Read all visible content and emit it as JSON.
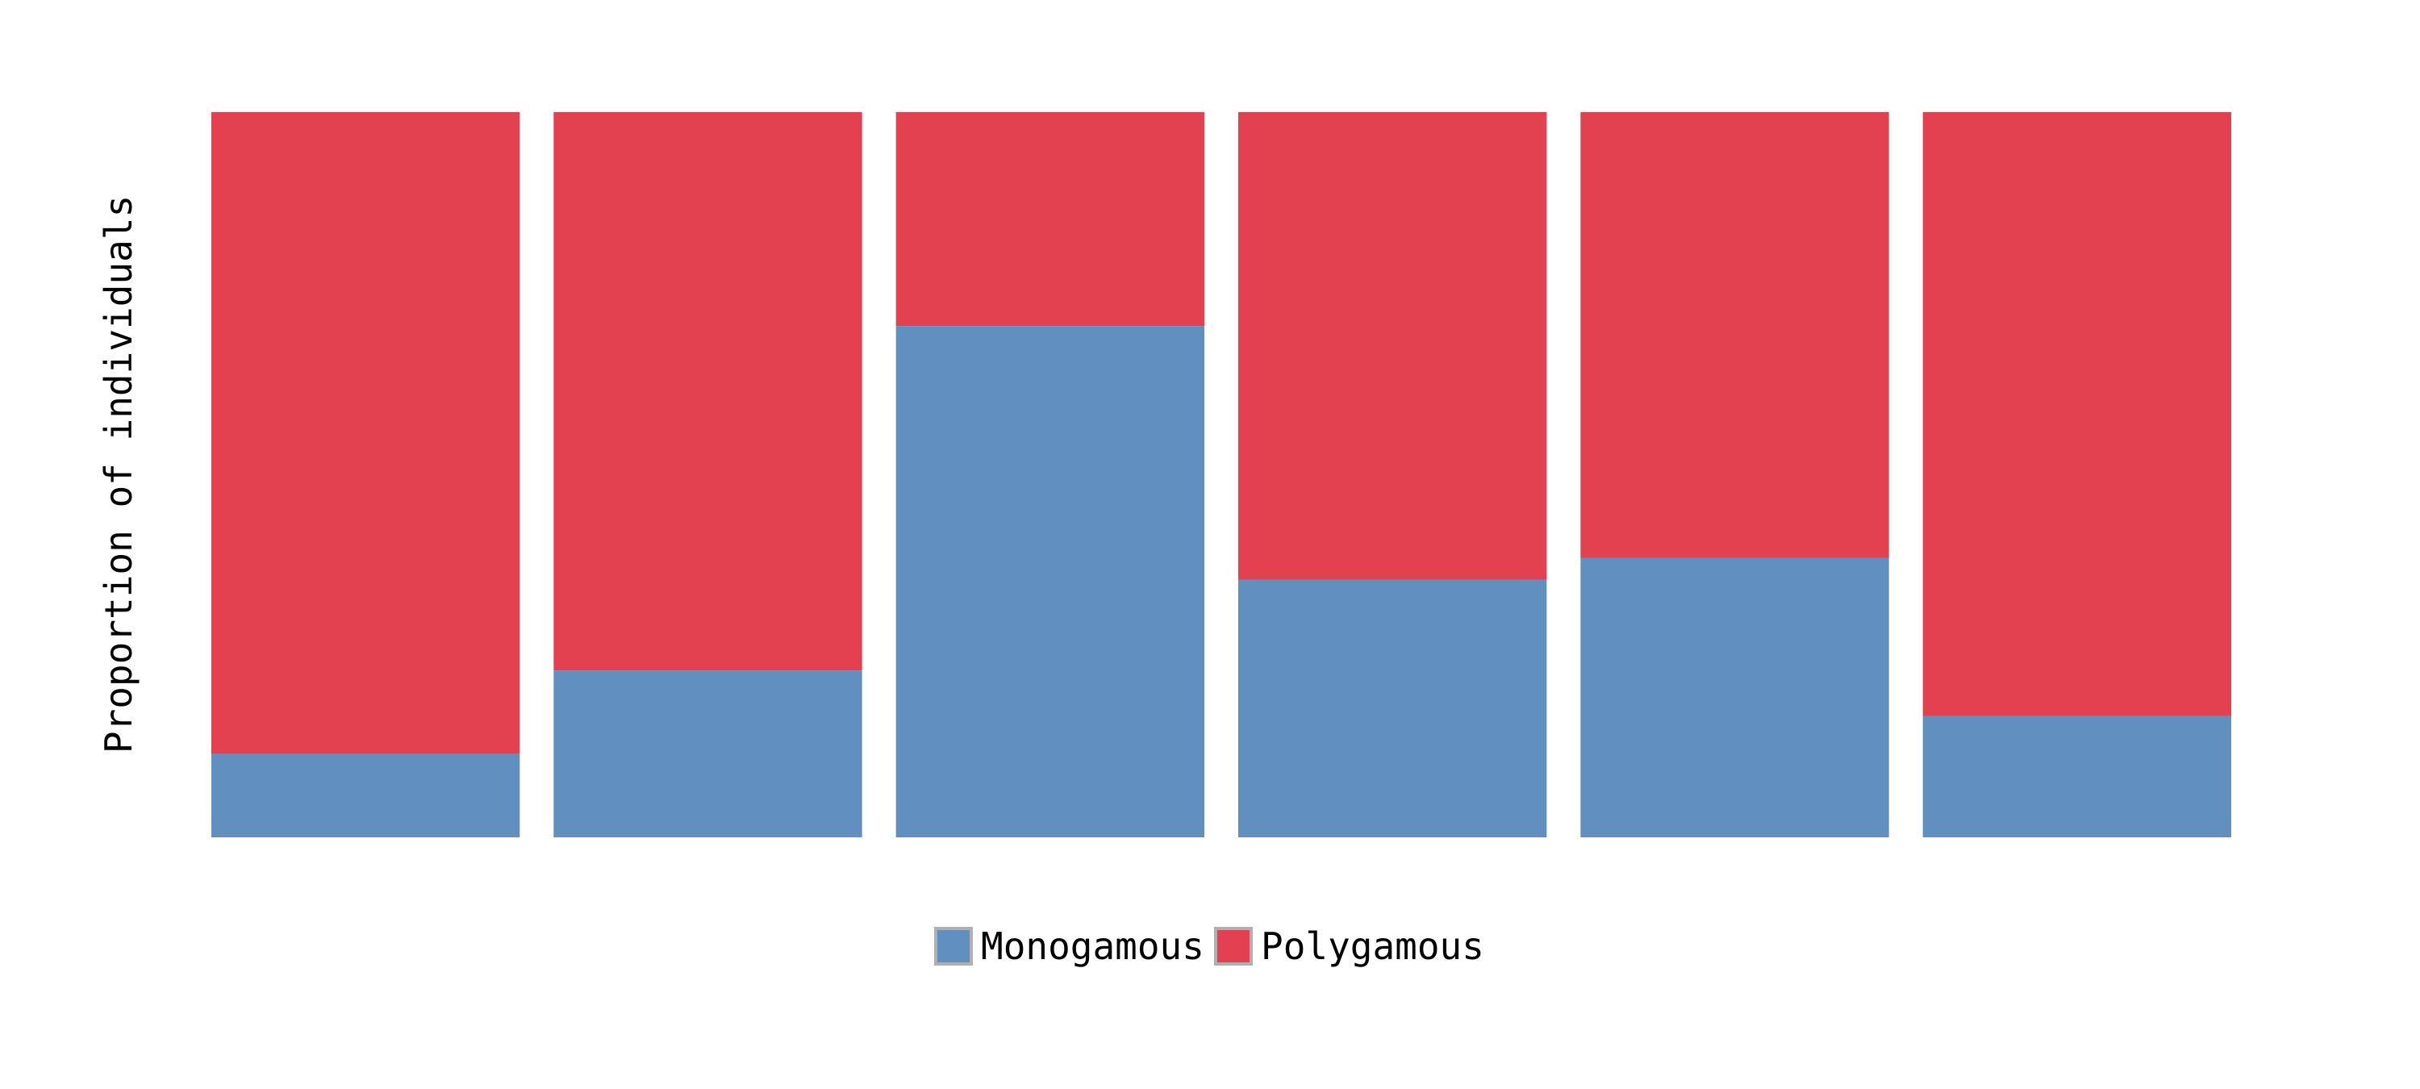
{
  "chart_data": {
    "type": "bar",
    "stacked": true,
    "normalized": true,
    "categories": [
      "",
      "",
      "",
      "",
      "",
      ""
    ],
    "series": [
      {
        "name": "Monogamous",
        "color": "#6190c0",
        "values": [
          0.115,
          0.23,
          0.705,
          0.355,
          0.385,
          0.167
        ]
      },
      {
        "name": "Polygamous",
        "color": "#e34050",
        "values": [
          0.885,
          0.77,
          0.295,
          0.645,
          0.615,
          0.833
        ]
      }
    ],
    "title": "",
    "xlabel": "",
    "ylabel": "Proportion of individuals",
    "ylim": [
      0,
      1
    ],
    "grid": false,
    "legend_position": "bottom-center"
  }
}
